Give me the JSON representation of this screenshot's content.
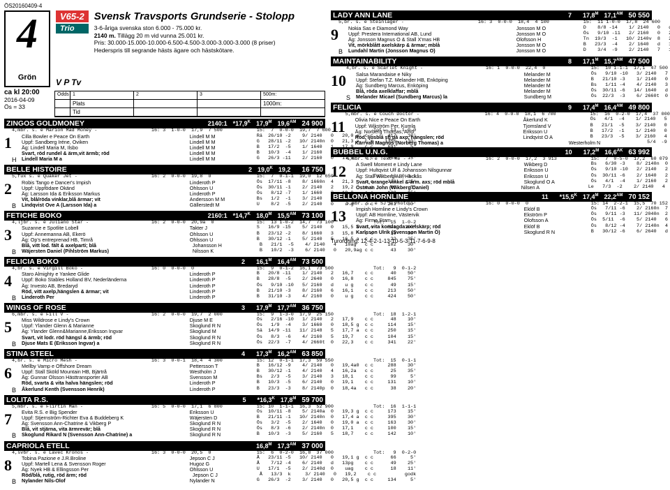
{
  "topcode": "ÖS20160409-4",
  "bignum": "4",
  "gron": "Grön",
  "v65": "V65-2",
  "trio": "Trio",
  "vptv": "V P Tv",
  "title": "Svensk Travsports Grundserie - Stolopp",
  "desc1": "3-6-åriga svenska ston 6.000 - 75.000 kr.",
  "desc2_a": "2140 m.",
  "desc2_b": " Tillägg 20 m vid vunna 25.001 kr.",
  "desc3": "Pris: 30.000-15.000-10.000-6.500-4.500-3.000-3.000-3.000 (8 priser)",
  "desc4": "Hederspris till segrande hästs ägare och hästskötare.",
  "kl": "ca kl 20:00",
  "date": "2016-04-09",
  "os": "Ös = 33",
  "odds_headers": [
    "Odds",
    "1",
    "2",
    "3",
    "500m:"
  ],
  "odds_r2": [
    "",
    "Plats",
    "",
    "",
    "1000m:"
  ],
  "odds_r3": [
    "",
    "Tid",
    "",
    "",
    ""
  ],
  "horses": [
    {
      "name": "ZINGOS GOLDMONEY",
      "s1": "2140:1",
      "s2": "*17,9",
      "sK": "K",
      "s3": "17,9",
      "sM": "M",
      "s4": "19,6",
      "sAM": "AM",
      "money": "24 900"
    },
    {
      "name": "BELLE HISTOIRE",
      "s1": "2",
      "s2": "19,0",
      "sK": "K",
      "s3": "19,2",
      "sM": "",
      "s4": "",
      "sAM": "",
      "money": "16 750"
    },
    {
      "name": "FETICHE BOKO",
      "s1": "2160:1",
      "s2": "*14,7",
      "sK": "K",
      "s3": "18,0",
      "sM": "M",
      "s4": "15,5",
      "sAM": "AM",
      "money": "73 100"
    },
    {
      "name": "FELICIA BOKO",
      "s1": "2",
      "s2": "",
      "sK": "",
      "s3": "16,1",
      "sM": "M",
      "s4": "16,4",
      "sAM": "AM",
      "money": "73 500"
    },
    {
      "name": "WINGS OF ROSE",
      "s1": "3",
      "s2": "",
      "sK": "",
      "s3": "17,9",
      "sM": "M",
      "s4": "17,7",
      "sAM": "AM",
      "money": "36 750"
    },
    {
      "name": "STINA STEEL",
      "s1": "4",
      "s2": "",
      "sK": "",
      "s3": "17,3",
      "sM": "M",
      "s4": "16,2",
      "sAM": "AM",
      "money": "63 850"
    },
    {
      "name": "LOLITA R.S.",
      "s1": "5",
      "s2": "",
      "sK": "",
      "s3": "*16,3",
      "sM": "K",
      "s4": "17,8",
      "sAM": "M",
      "money": "16,5",
      "sAM2": "AM",
      "money2": "59 700"
    },
    {
      "name": "CAPRIOLA ETELL",
      "s1": "",
      "s2": "",
      "sK": "",
      "s3": "16,8",
      "sM": "M",
      "s4": "17,3",
      "sAM": "AM",
      "money": "37 000"
    },
    {
      "name": "LADY ANN LANE",
      "s1": "7",
      "s2": "",
      "sK": "",
      "s3": "17,8",
      "sM": "M",
      "s4": "17,1",
      "sAM": "AM",
      "money": "50 550"
    },
    {
      "name": "MAINTAINABILITY",
      "s1": "8",
      "s2": "",
      "sK": "",
      "s3": "17,1",
      "sM": "M",
      "s4": "15,7",
      "sAM": "AM",
      "money": "47 500"
    },
    {
      "name": "FELICIA",
      "s1": "9",
      "s2": "",
      "sK": "",
      "s3": "17,4",
      "sM": "M",
      "s4": "16,4",
      "sAM": "AM",
      "money": "49 800"
    },
    {
      "name": "BUBBEL U.N.G.",
      "s1": "10",
      "s2": "",
      "sK": "",
      "s3": "17,2",
      "sM": "M",
      "s4": "16,6",
      "sAM": "AK",
      "money": "63 992"
    },
    {
      "name": "BELLONA HORNLINE",
      "s1": "11",
      "s2": "",
      "sK": "",
      "s3": "*15,5",
      "sM": "K",
      "s4": "17,4",
      "sAM": "M",
      "s4b": "22,2",
      "sAM2": "AM",
      "money": "70 152"
    }
  ],
  "entries_left": [
    {
      "num": "1",
      "letter": "H",
      "ped": "4,mbr. s. e Marion Mad Money -                   16: 3  1-0-0  17,9  7 500            15:  7  0-0-0  19,7  7 600               Tot:  13  1-0-0",
      "lines": [
        [
          "Cilla Bowler e Peace On Earth",
          "Lindell M M",
          "Rä  26/10 -2    9/ 2140   0   20,0 a  c c     417    10'"
        ],
        [
          "Uppf: Sandberg Iréne, Oviken",
          "Lindell M M",
          "G   28/11 -2   10/ 2140n  0   21,3 a  c c    1355    10'"
        ],
        [
          "Äg: Lindell Maria M, Ilsbo",
          "Lindell M M",
          "B   17/2  -5    1/ 1640   1   17,9    c c     691     5'"
        ],
        [
          "Svart, röd rundel & ärm,vit ärmb; röd",
          "Lindell M M",
          "B   10/3  -4    1/ 2160   4   20,4    c c      63    10'"
        ],
        [
          "Lindell Maria M  a",
          "Lindell M M",
          "G   26/3 -11    2/ 2160   0   17,9    c c     584    15'"
        ]
      ]
    },
    {
      "num": "2",
      "letter": "B",
      "ped": "5,fux s. e Quaker Jet -                          16: 2  0-0-0  19,8  0                15:  7  0-1-1  19,0  12 650              Tot:  13  0-1-1",
      "lines": [
        [
          "Robis Tango e Dancer's Impish",
          "Linderoth P",
          "Ös  17/11 -8    8/ 1660n  4   21,3    c c     338    15'"
        ],
        [
          "Uppf: Uppfödare Okänd",
          "Ohlsson U",
          "Ös  30/11 -1    2/ 2140   2   19,2    c c      61     5'"
        ],
        [
          "Äg: Larsson Ida & Eriksson Markus",
          "Linderoth P",
          "Ös   8/12 -7    1/ 1660   2   19,0    c c     138    15'"
        ],
        [
          "Vit, blå/röda vinklar,blå ärmar; vit",
          "Andersson M M",
          "Bs   1/2  -1    3/ 2140   0   19,8 g  c c     339    30'"
        ],
        [
          "Lindqvist Ove A (Larsson Ida) a",
          "Gällerstedt M",
          "U    8/2  -5    2/ 2140   0    u g    c c     281    30'"
        ]
      ]
    },
    {
      "num": "3",
      "letter": "B",
      "ped": "4,ljbr. s. e Juliano Star -                      16: 2  0-0-0  20,9a  0               15:  13 1-0-2  14,7  73 100              Tot:  15  1-0-2",
      "lines": [
        [
          "Suzanne e Spotlite Lobell",
          "Takter J",
          "S   16/9 -15    5/ 2140   0   15,5 a  c c     891   100'"
        ],
        [
          "Uppf: Annemanna AB, Ekerö",
          "Ohlsson U",
          "B   23/12 -2    8/ 1660   3   15,8    c c      33    30'"
        ],
        [
          "Äg: Op's entreprenad HB, Timrå",
          "Ohlsson U",
          "B   30/12 -1    5/ 2140   5   16,5 a  c c      22    35'"
        ],
        [
          "Blå, vitt lod. fält & axelparti; blå",
          "Johansson H",
          "B   21/1  -5    4/ 2140   4   10ag   c c     102    30'"
        ],
        [
          "Wäjersten Daniel (Pihlström Markus)",
          "Nilsson K",
          "B   10/2  -3    6/ 2140   0   20,9ag c c      43    30'"
        ]
      ]
    },
    {
      "num": "4",
      "letter": "B",
      "ped": "4,br. s. e Virgill Boko -                        16: 0  0-0-0  0                      15:  9  0-1-2  16,1  73 500              Tot:   9  0-1-2",
      "lines": [
        [
          "Staro Almighty e Yankee Glide",
          "Linderoth P",
          "B   20/8 -11    1/ 2140   2   16,7    c c      40    50'"
        ],
        [
          "Uppf: Boko Stables Holland BV, Nederländerna",
          "Linderoth P",
          "B   28/8  -5    2/ 2640   0   16,8    c c     845    75'"
        ],
        [
          "Äg: Investo AB, Bredaryd",
          "Linderoth P",
          "Ös   9/10 -10   5/ 2160   d    u g    c c      49    15'"
        ],
        [
          "Röd, vitt axelp,hängslen & ärmar; vit",
          "Linderoth P",
          "B   21/10 -3    8/ 2160   6   16,1    c c     213    50'"
        ],
        [
          "Linderoth Per",
          "Linderoth P",
          "B   31/10 -3    4/ 2160   0    u g    c c     424    50'"
        ]
      ]
    },
    {
      "num": "5",
      "letter": "B",
      "ped": "6,mbr. s. e Fill V -                             16: 2  0-0-0  19,7  2 000            15:  9  1-3-0  17,9  25 150              Tot:  18  1-2-1",
      "lines": [
        [
          "Miss Wildrose e Lindy's Crown",
          "Djuse M E",
          "Ös   2/16 -10   1/ 2140   2   17,9    c c      48    10'"
        ],
        [
          "Uppf: Ylander Glenn & Marianne",
          "Skoglund R N",
          "Ös   1/9  -4    3/ 1660   0   18,5 g  c c     114    15'"
        ],
        [
          "Äg: Ylander Glenn&Marianne,Eriksson Ingvar",
          "Skoglund M",
          "Sä  14/9 -11   11/ 2148   5   17,7 a  c c     250    15'"
        ],
        [
          "Svart, vit lodr. röd hängsl & ärmb; röd",
          "Skoglund R N",
          "Ös   8/3  -6    4/ 2160   5   19,7    c c     104    15'"
        ],
        [
          "Djuse Mats E (Eriksson Ingvar) a",
          "Skoglund R N",
          "Ös  22/3  -7    4/ 2660t  0   22,3    c c     341    22'"
        ]
      ]
    },
    {
      "num": "6",
      "letter": "B",
      "ped": "4,br. s. e Micro Mesh -                          16: 3  0-0-1  18,4  4 300            15: 12  0-1-1  17,3  59 550              Tot:  15  0-1-1",
      "lines": [
        [
          "Mellby Vamp e Offshore Dream",
          "Pettersson T",
          "B   16/12 -9    4/ 2140   0   19,4a0  c c     288    30'"
        ],
        [
          "Uppf: Stall Sköld Mountain HB, Bjärtrå",
          "Westholm J",
          "B   30/12 -1    4/ 2140   4   16,2a   c c      25    35'"
        ],
        [
          "Äg: Gunnar Olsson Hästtransporter AB",
          "Svensson M",
          "Bs   2/3  -5    3/ 2140   3   18,1    c c      99     5'"
        ],
        [
          "Röd, svarta & vita halva hängslen; röd",
          "Linderoth P",
          "B   10/3  -5    6/ 2140   0   19,1    c c     131    10'"
        ],
        [
          "Åkerlund Kenth (Svensson Henrik)",
          "Linderoth P",
          "B   23/3  -3    8/ 2140p  0   18,4a   c c      38    20'"
        ]
      ]
    },
    {
      "num": "7",
      "letter": "B",
      "ped": "5,mbr. s. e Flirtin Man -                        16: 5  0-0-0  17,1  6 800            15: 10  1-1-1  16,3  52 900              Tot:  16  1-1-1",
      "lines": [
        [
          "Evita R.S. e Big Spender",
          "Eriksson U",
          "Ös  10/11 -8    5/ 2140a  0   19,3 g  c c     173    15'"
        ],
        [
          "Uppf: Stjernström-Richter Eva & Buddeberg K",
          "Wäjersten D",
          "B   21/11 -1   10/ 2140n  0   17,4 a  c c     395    30'"
        ],
        [
          "Äg: Svensson Ann-Chatrine & Vikberg P",
          "Skoglund R N",
          "Ös   3/2  -5    2/ 1640   0   19,0 a  c c     163    30'"
        ],
        [
          "Blå, vit stjärna, vita ärmrevär; blå",
          "Skoglund R N",
          "Ös   8/3  -6    2/ 2140n  0   17,1    c c     100    15'"
        ],
        [
          "Skoglund Rikard N (Svensson Ann-Chatrine) a",
          "Skoglund R N",
          "B   10/3  -3    5/ 2160   5   18,7    c c     142    10'"
        ]
      ]
    },
    {
      "num": "8",
      "letter": "B",
      "ped": "4,svbr. s. e Lavec Kronos -                      16: 3  0-0-0  20,5  0                15:  6  0-2-0  16,8  37 000              Tot:   9  0-2-0",
      "lines": [
        [
          "Tobina Pazione e J.R.Broline",
          "Jepson C J",
          "Å   23/11 -5   10/ 2140   0   19,1 g  c c      66     5'"
        ],
        [
          "Uppf: Martell Lena & Svensson Roger",
          "Hugoz G",
          "Å    7/12 -4    6/ 2140   d   13pg    c c      49    25'"
        ],
        [
          "Äg: Nyek HB & Ellingsson Per",
          "Ohlsson U",
          "U   17/1  -5    2/ 2140d  0    uag    c c      18    11'"
        ],
        [
          "Röd/blå, rutig, röd ärm; röd",
          "Jepson C J",
          "Å   13/3  k     3/ 2140   0   19,2    c c          godk"
        ],
        [
          "Nylander Nils-Olof",
          "Nylander N",
          "G   26/3  -2    3/ 2140   0   20,5 g  c c     134     5'"
        ]
      ]
    }
  ],
  "entries_right": [
    {
      "num": "9",
      "letter": "B",
      "ped": "5,br. s. e Steinlager -                          16: 3  0-0-0  18,4  4 100            15:  11 1-0-0  17,8  24 600              Tot:  20  1-0-0",
      "lines": [
        [
          "Nokia Sas e Diamond Way",
          "Jonsson M O",
          "D    8/8 -14    1/ 2140   0   dist    c c    1288    20'"
        ],
        [
          "Uppf: Prestera International AB, Lund",
          "Jonsson M O",
          "Ös   9/10 -11   2/ 2160   0   22,0 g  c c     394     5'"
        ],
        [
          "Äg: Jonsson Magnus O & Stall X'mas HB",
          "Olofsson H",
          "Tn  19/3  -1   10/ 2140v  8   20,5ag  c c     187    20'"
        ],
        [
          "Vit, mörkblått axelskärp & ärmar; mblå",
          "Jonsson M O",
          "B   23/3  -4    2/ 1640   d   12 g    c c     542    20'"
        ],
        [
          "Lundahl Martin (Jonsson Magnus O)",
          "Jonsson M O",
          "D    3/4  -9    2/ 2140   7   18,4    c c     444     5'"
        ]
      ]
    },
    {
      "num": "10",
      "letter": "S",
      "ped": "4,br. s. e Scarlet Knight -                      16: 1  0-0-0  22,4  0                15:  10 1-1-1  17,1  47 500              Tot:  11  1-1-1",
      "lines": [
        [
          "Salsa Marandaise e Niky",
          "Melander M",
          "Ös   9/10 -10   3/ 2140   7   18,9    c c      82    15'"
        ],
        [
          "Uppf: Stefan T.Z. Melander HB, Enköping",
          "Melander M",
          "B   21/10 -3    1/ 2140   0   17,1    c c     499    50'"
        ],
        [
          "Äg: Sundberg Marcus, Enköping",
          "Melander M",
          "Bs   1/11 -4    4/ 2140   3   15,7 a  c c     377    50'"
        ],
        [
          "Blå, röda axelklaffar; mblå",
          "Melander M",
          "Ös  30/11 -6   14/ 1640   d   8ag     c c      37    50'"
        ],
        [
          "Melander Micael (Sundberg Marcus) la",
          "Sundberg M",
          "Ös  22/3  -3    6/ 2660t  0   22,4 g  c c     102    22'"
        ]
      ]
    },
    {
      "num": "11",
      "letter": "",
      "ped": "5,mbr. s. e Couch Doctor -                       16: 4  0-0-0  18,1  6 700            15:  16  0-2-0  17,4  37 000             Tot:  24  0-2-0",
      "lines": [
        [
          "Olivia Nice e Peace On Earth",
          "Åkerlund K",
          "Ös   4/1  -4    1/ 2140   5   19,2    c c     119    30'"
        ],
        [
          "Uppf: Wikström Per, Kumla",
          "Tjomsland V",
          "B   21/1  -5    3/ 2140   0   20,6 a  c c     389    30'"
        ],
        [
          "Äg: Norberg Thomas, Alnö",
          "Eriksson U",
          "B   17/2  -1    1/ 2140   0   18,1    c c     349    30'"
        ],
        [
          "Röd, ljusblå stj på axp, hängslen; röd",
          "Lindqvist O A",
          "B   23/3  -5    3/ 2160   4   18,6    c c      66     5'"
        ],
        [
          "Kärrvall Magnus (Norberg Thomas) a",
          "Westerholm N",
          "    5/4  -9   Lopp 9     2140        8 a"
        ]
      ]
    },
    {
      "num": "12",
      "letter": "",
      "ped": "4,mbr. s. e Text Me -                            16: 2  0-0-0  17,2  3 913            15:  7  0-5-0  17,2  60 079              Tot:   9  0-5-0",
      "lines": [
        [
          "A Swell Moment e Lindy Lane",
          "Wikberg D",
          "Bs   6/30 -3    8/ 2140n  0   19 g    c c     104    20'"
        ],
        [
          "Uppf: Hultqvist Ulf & Johansson Nilsgunnar",
          "Eriksson U",
          "Ös   9/10 -10   2/ 2140   2   18,1    c c      71    15'"
        ],
        [
          "Äg: Stall Wikberg AB, Häckås",
          "Eriksson U",
          "Ös  30/11 -6    2/ 1640   2   16,6 a  c c      55    50'"
        ],
        [
          "Svart, orange vinkel & ärm. axs; röd mblå",
          "Skoglund O A",
          "Ös   4/1  -4    1/ 2160   2   18,2    c c      27    30'"
        ],
        [
          "Östman John (Wikberg Daniel)",
          "Nilsen A",
          "Le   7/3  -2    2/ 2140   4   18,6 a            --   331'"
        ]
      ]
    },
    {
      "num": "13",
      "letter": "",
      "ped": "5,mbr. s. e SJ's Photo -                         16: 0  0-0-0  0                      15: 14  2-2-1  15,5  70 152              Tot:  14  2-2-1",
      "lines": [
        [
          "Impish Hornline e Lindy's Crown",
          "Eklöf B",
          "Ös   7/11 -6    2/ 2160n  7   18,6    c c      61    30'"
        ],
        [
          "Uppf: AB Hornline, Västervik",
          "Ekström P",
          "Ös   9/11 -3   11/ 2040n  2   16,7    c c     174    25'"
        ],
        [
          "Äg: Firma Stam",
          "Olofsson A",
          "Ös  5/11  -6    5/ 2140   6   16,7    c c     365    30'"
        ],
        [
          "Svart, vita korslagda axelskärp; röd",
          "Eklöf B",
          "Ös   8/12 -4    7/ 2140n  4   19,0    c c     330    30'"
        ],
        [
          "Karlsson Ulrik (Svensson Martin Ö)",
          "Skoglund R N",
          "B   30/12 -6    6/ 2640   d   10 g    c c     101    50'"
        ]
      ]
    }
  ],
  "turord": "Turordning: 12-4-2-1-13-10-5-3-11-7-6-9-8"
}
